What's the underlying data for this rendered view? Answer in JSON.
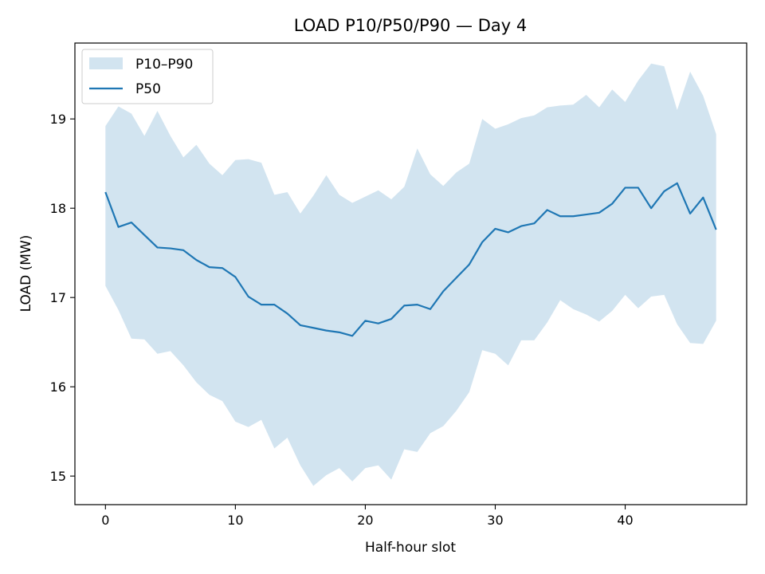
{
  "chart_data": {
    "type": "area",
    "title": "LOAD P10/P50/P90 — Day 4",
    "xlabel": "Half-hour slot",
    "ylabel": "LOAD (MW)",
    "xlim": [
      -2.35,
      49.35
    ],
    "ylim": [
      14.68,
      19.85
    ],
    "xticks": [
      0,
      10,
      20,
      30,
      40
    ],
    "yticks": [
      15,
      16,
      17,
      18,
      19
    ],
    "grid": false,
    "legend_position": "top-left",
    "x": [
      0,
      1,
      2,
      3,
      4,
      5,
      6,
      7,
      8,
      9,
      10,
      11,
      12,
      13,
      14,
      15,
      16,
      17,
      18,
      19,
      20,
      21,
      22,
      23,
      24,
      25,
      26,
      27,
      28,
      29,
      30,
      31,
      32,
      33,
      34,
      35,
      36,
      37,
      38,
      39,
      40,
      41,
      42,
      43,
      44,
      45,
      46,
      47
    ],
    "series": [
      {
        "name": "P10–P90",
        "kind": "band",
        "color": "#1f77b4",
        "opacity": 0.2,
        "lower": [
          17.13,
          16.86,
          16.54,
          16.53,
          16.37,
          16.4,
          16.24,
          16.05,
          15.91,
          15.84,
          15.61,
          15.55,
          15.63,
          15.31,
          15.43,
          15.12,
          14.89,
          15.01,
          15.09,
          14.94,
          15.09,
          15.12,
          14.96,
          15.3,
          15.27,
          15.48,
          15.56,
          15.73,
          15.94,
          16.41,
          16.37,
          16.24,
          16.52,
          16.52,
          16.72,
          16.97,
          16.87,
          16.81,
          16.73,
          16.85,
          17.03,
          16.88,
          17.01,
          17.03,
          16.7,
          16.49,
          16.48,
          16.74
        ],
        "upper": [
          18.92,
          19.14,
          19.06,
          18.81,
          19.09,
          18.81,
          18.57,
          18.71,
          18.5,
          18.37,
          18.54,
          18.55,
          18.51,
          18.15,
          18.18,
          17.94,
          18.14,
          18.37,
          18.15,
          18.06,
          18.13,
          18.2,
          18.1,
          18.24,
          18.67,
          18.38,
          18.25,
          18.4,
          18.5,
          19.0,
          18.89,
          18.94,
          19.01,
          19.04,
          19.13,
          19.15,
          19.16,
          19.27,
          19.13,
          19.33,
          19.19,
          19.43,
          19.62,
          19.59,
          19.1,
          19.53,
          19.26,
          18.83
        ]
      },
      {
        "name": "P50",
        "kind": "line",
        "color": "#1f77b4",
        "values": [
          18.18,
          17.79,
          17.84,
          17.7,
          17.56,
          17.55,
          17.53,
          17.42,
          17.34,
          17.33,
          17.23,
          17.01,
          16.92,
          16.92,
          16.82,
          16.69,
          16.66,
          16.63,
          16.61,
          16.57,
          16.74,
          16.71,
          16.76,
          16.91,
          16.92,
          16.87,
          17.07,
          17.22,
          17.37,
          17.62,
          17.77,
          17.73,
          17.8,
          17.83,
          17.98,
          17.91,
          17.91,
          17.93,
          17.95,
          18.05,
          18.23,
          18.23,
          18.0,
          18.19,
          18.28,
          17.94,
          18.12,
          17.76
        ]
      }
    ]
  }
}
